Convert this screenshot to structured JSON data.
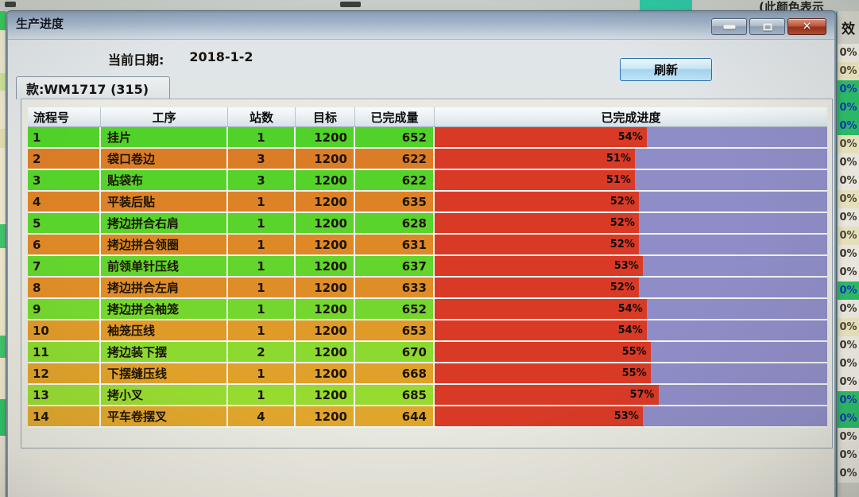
{
  "overlay_window": {
    "title": "生产进度",
    "date_label": "当前日期:",
    "date_value": "2018-1-2",
    "refresh_button_label": "刷新",
    "tab_label": "款:WM1717 (315)"
  },
  "table": {
    "headers": {
      "no": "流程号",
      "process": "工序",
      "stations": "站数",
      "target": "目标",
      "completed": "已完成量",
      "progress": "已完成进度"
    },
    "bar_colors": {
      "filled": "#d93a26",
      "remaining": "#8f8dc8"
    },
    "rows": [
      {
        "no": "1",
        "process": "挂片",
        "stations": "1",
        "target": "1200",
        "completed": "652",
        "progress_pct": 54,
        "progress_label": "54%",
        "row_color": "#50d22a"
      },
      {
        "no": "2",
        "process": "袋口卷边",
        "stations": "3",
        "target": "1200",
        "completed": "622",
        "progress_pct": 51,
        "progress_label": "51%",
        "row_color": "#db7d27"
      },
      {
        "no": "3",
        "process": "贴袋布",
        "stations": "3",
        "target": "1200",
        "completed": "622",
        "progress_pct": 51,
        "progress_label": "51%",
        "row_color": "#55d32b"
      },
      {
        "no": "4",
        "process": "平装后贴",
        "stations": "1",
        "target": "1200",
        "completed": "635",
        "progress_pct": 52,
        "progress_label": "52%",
        "row_color": "#dd8226"
      },
      {
        "no": "5",
        "process": "拷边拼合右肩",
        "stations": "1",
        "target": "1200",
        "completed": "628",
        "progress_pct": 52,
        "progress_label": "52%",
        "row_color": "#5ad42c"
      },
      {
        "no": "6",
        "process": "拷边拼合领圈",
        "stations": "1",
        "target": "1200",
        "completed": "631",
        "progress_pct": 52,
        "progress_label": "52%",
        "row_color": "#de8826"
      },
      {
        "no": "7",
        "process": "前领单针压线",
        "stations": "1",
        "target": "1200",
        "completed": "637",
        "progress_pct": 53,
        "progress_label": "53%",
        "row_color": "#63d52d"
      },
      {
        "no": "8",
        "process": "拷边拼合左肩",
        "stations": "1",
        "target": "1200",
        "completed": "633",
        "progress_pct": 52,
        "progress_label": "52%",
        "row_color": "#df8d27"
      },
      {
        "no": "9",
        "process": "拷边拼合袖笼",
        "stations": "1",
        "target": "1200",
        "completed": "652",
        "progress_pct": 54,
        "progress_label": "54%",
        "row_color": "#74d72e"
      },
      {
        "no": "10",
        "process": "袖笼压线",
        "stations": "1",
        "target": "1200",
        "completed": "653",
        "progress_pct": 54,
        "progress_label": "54%",
        "row_color": "#df9a28"
      },
      {
        "no": "11",
        "process": "拷边装下摆",
        "stations": "2",
        "target": "1200",
        "completed": "670",
        "progress_pct": 55,
        "progress_label": "55%",
        "row_color": "#8cd930"
      },
      {
        "no": "12",
        "process": "下摆缝压线",
        "stations": "1",
        "target": "1200",
        "completed": "668",
        "progress_pct": 55,
        "progress_label": "55%",
        "row_color": "#dfa12a"
      },
      {
        "no": "13",
        "process": "拷小叉",
        "stations": "1",
        "target": "1200",
        "completed": "685",
        "progress_pct": 57,
        "progress_label": "57%",
        "row_color": "#97db31"
      },
      {
        "no": "14",
        "process": "平车卷摆叉",
        "stations": "4",
        "target": "1200",
        "completed": "644",
        "progress_pct": 53,
        "progress_label": "53%",
        "row_color": "#e0a62b"
      }
    ]
  },
  "background_window": {
    "top_partial_text": "(此颜色表示",
    "legend_swatch_color": "#2cc7a4",
    "efficiency_column": {
      "header": "效",
      "cells": [
        {
          "value": "0%",
          "bg": "white"
        },
        {
          "value": "0%",
          "bg": "cream"
        },
        {
          "value": "0%",
          "bg": "green"
        },
        {
          "value": "0%",
          "bg": "green"
        },
        {
          "value": "0%",
          "bg": "green"
        },
        {
          "value": "0%",
          "bg": "cream"
        },
        {
          "value": "0%",
          "bg": "white"
        },
        {
          "value": "0%",
          "bg": "white"
        },
        {
          "value": "0%",
          "bg": "cream"
        },
        {
          "value": "0%",
          "bg": "white"
        },
        {
          "value": "0%",
          "bg": "cream"
        },
        {
          "value": "0%",
          "bg": "white"
        },
        {
          "value": "0%",
          "bg": "white"
        },
        {
          "value": "0%",
          "bg": "green"
        },
        {
          "value": "0%",
          "bg": "white"
        },
        {
          "value": "0%",
          "bg": "cream"
        },
        {
          "value": "0%",
          "bg": "white"
        },
        {
          "value": "0%",
          "bg": "white"
        },
        {
          "value": "0%",
          "bg": "white"
        },
        {
          "value": "0%",
          "bg": "green"
        },
        {
          "value": "0%",
          "bg": "green"
        },
        {
          "value": "0%",
          "bg": "white"
        },
        {
          "value": "0%",
          "bg": "white"
        },
        {
          "value": "0%",
          "bg": "white"
        }
      ]
    }
  }
}
